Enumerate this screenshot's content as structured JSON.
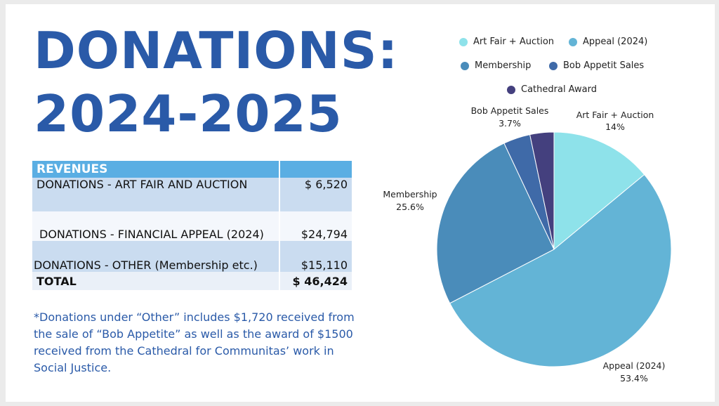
{
  "title_line1": "DONATIONS:",
  "title_line2": "2024-2025",
  "table": {
    "header": "REVENUES",
    "rows": [
      {
        "label": "DONATIONS - ART FAIR AND AUCTION",
        "amount": "$ 6,520"
      },
      {
        "label": "DONATIONS - FINANCIAL APPEAL (2024)",
        "amount": "$24,794"
      },
      {
        "label": "DONATIONS - OTHER (Membership etc.)",
        "amount": "$15,110"
      }
    ],
    "total_label": "TOTAL",
    "total_amount": "$ 46,424"
  },
  "note": "*Donations under “Other” includes $1,720 received from the sale of “Bob Appetite” as well as the award of $1500 received from the Cathedral for Communitas’ work in Social Justice.",
  "chart_data": {
    "type": "pie",
    "slices": [
      {
        "name": "Art Fair + Auction",
        "value": 14,
        "label": "14%",
        "color": "#8ee2ea"
      },
      {
        "name": "Appeal (2024)",
        "value": 53.4,
        "label": "53.4%",
        "color": "#63b4d6"
      },
      {
        "name": "Membership",
        "value": 25.6,
        "label": "25.6%",
        "color": "#4a8cba"
      },
      {
        "name": "Bob Appetit Sales",
        "value": 3.7,
        "label": "3.7%",
        "color": "#3f6aa8"
      },
      {
        "name": "Cathedral Award",
        "value": 3.3,
        "label": "",
        "color": "#44407e"
      }
    ],
    "legend_position": "top"
  }
}
